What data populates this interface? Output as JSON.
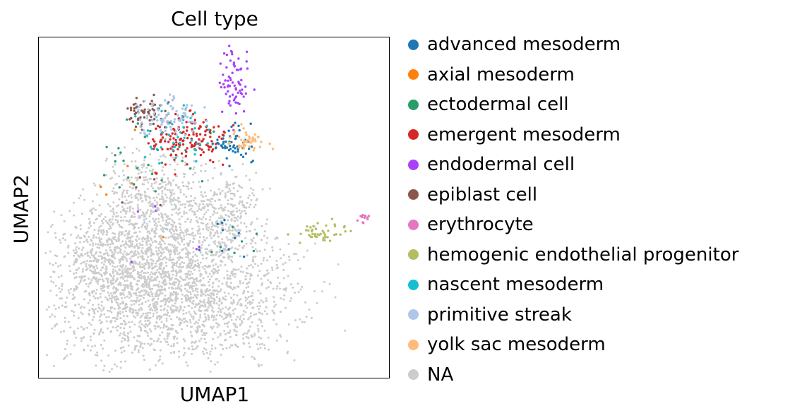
{
  "chart_data": {
    "type": "scatter",
    "title": "Cell type",
    "xlabel": "UMAP1",
    "ylabel": "UMAP2",
    "xlim": [
      0,
      10
    ],
    "ylim": [
      0,
      10
    ],
    "grid": false,
    "ticks": "none",
    "legend_position": "outside-right",
    "point_label_note": "no printed values; coordinates estimated from pixel positions",
    "series": [
      {
        "name": "advanced mesoderm",
        "color": "#1f77b4",
        "clusters": [
          {
            "cx": 5.5,
            "cy": 6.9,
            "sx": 0.35,
            "sy": 0.3,
            "n": 55
          },
          {
            "cx": 5.3,
            "cy": 4.3,
            "sx": 0.35,
            "sy": 0.35,
            "n": 10
          }
        ]
      },
      {
        "name": "axial mesoderm",
        "color": "#ff7f0e",
        "clusters": [
          {
            "cx": 3.6,
            "cy": 6.2,
            "sx": 0.9,
            "sy": 1.0,
            "n": 6
          }
        ]
      },
      {
        "name": "ectodermal cell",
        "color": "#279e68",
        "clusters": [
          {
            "cx": 3.3,
            "cy": 6.7,
            "sx": 0.8,
            "sy": 0.55,
            "n": 30
          },
          {
            "cx": 5.8,
            "cy": 4.0,
            "sx": 0.5,
            "sy": 0.3,
            "n": 7
          }
        ]
      },
      {
        "name": "emergent mesoderm",
        "color": "#d62728",
        "clusters": [
          {
            "cx": 4.2,
            "cy": 7.0,
            "sx": 0.55,
            "sy": 0.4,
            "n": 150
          }
        ]
      },
      {
        "name": "endodermal cell",
        "color": "#aa40fc",
        "clusters": [
          {
            "cx": 5.6,
            "cy": 8.8,
            "sx": 0.2,
            "sy": 0.55,
            "n": 70
          },
          {
            "cx": 3.4,
            "cy": 4.4,
            "sx": 0.7,
            "sy": 0.8,
            "n": 6
          }
        ]
      },
      {
        "name": "epiblast cell",
        "color": "#8c564b",
        "clusters": [
          {
            "cx": 3.0,
            "cy": 7.8,
            "sx": 0.3,
            "sy": 0.25,
            "n": 55
          },
          {
            "cx": 3.3,
            "cy": 5.5,
            "sx": 0.5,
            "sy": 0.4,
            "n": 5
          }
        ]
      },
      {
        "name": "erythrocyte",
        "color": "#e377c2",
        "clusters": [
          {
            "cx": 9.3,
            "cy": 4.7,
            "sx": 0.15,
            "sy": 0.08,
            "n": 12
          }
        ]
      },
      {
        "name": "hemogenic endothelial progenitor",
        "color": "#b5bd61",
        "clusters": [
          {
            "cx": 8.15,
            "cy": 4.25,
            "sx": 0.4,
            "sy": 0.15,
            "n": 45
          }
        ]
      },
      {
        "name": "nascent mesoderm",
        "color": "#17becf",
        "clusters": [
          {
            "cx": 3.9,
            "cy": 7.2,
            "sx": 0.55,
            "sy": 0.55,
            "n": 45
          }
        ]
      },
      {
        "name": "primitive streak",
        "color": "#aec7e8",
        "clusters": [
          {
            "cx": 3.7,
            "cy": 7.7,
            "sx": 0.5,
            "sy": 0.3,
            "n": 90
          },
          {
            "cx": 3.0,
            "cy": 4.5,
            "sx": 0.7,
            "sy": 0.7,
            "n": 4
          }
        ]
      },
      {
        "name": "yolk sac mesoderm",
        "color": "#ffbb78",
        "clusters": [
          {
            "cx": 6.0,
            "cy": 6.95,
            "sx": 0.3,
            "sy": 0.2,
            "n": 45
          }
        ]
      },
      {
        "name": "NA",
        "color": "#cccccc",
        "clusters": [
          {
            "cx": 3.7,
            "cy": 2.7,
            "sx": 1.7,
            "sy": 1.1,
            "n": 2400
          },
          {
            "cx": 3.3,
            "cy": 5.2,
            "sx": 0.8,
            "sy": 0.75,
            "n": 500
          },
          {
            "cx": 5.4,
            "cy": 4.9,
            "sx": 0.45,
            "sy": 0.55,
            "n": 220
          },
          {
            "cx": 2.0,
            "cy": 3.6,
            "sx": 0.6,
            "sy": 0.7,
            "n": 250
          }
        ]
      }
    ]
  }
}
